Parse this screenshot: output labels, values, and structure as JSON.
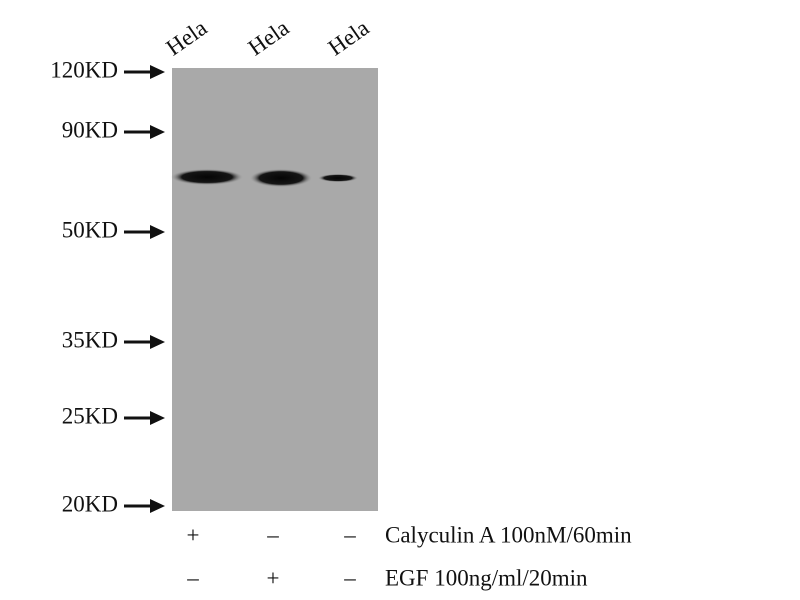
{
  "lanes": [
    "Hela",
    "Hela",
    "Hela"
  ],
  "markers": [
    "120KD",
    "90KD",
    "50KD",
    "35KD",
    "25KD",
    "20KD"
  ],
  "treatments": [
    {
      "label": "Calyculin A 100nM/60min",
      "signs": [
        "+",
        "–",
        "–"
      ]
    },
    {
      "label": "EGF 100ng/ml/20min",
      "signs": [
        "–",
        "+",
        "–"
      ]
    }
  ]
}
